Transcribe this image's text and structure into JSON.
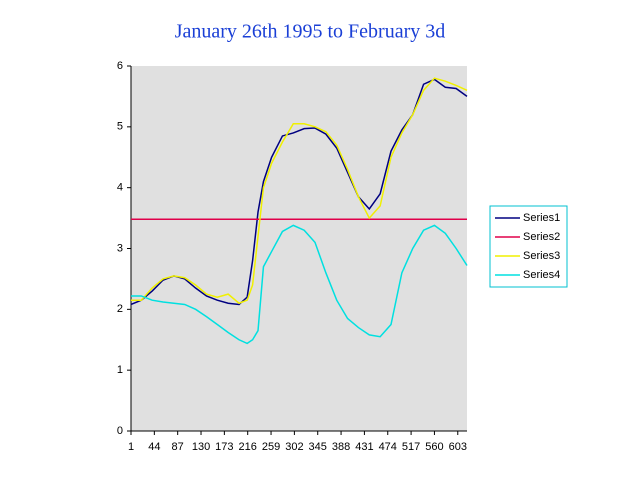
{
  "chart_data": {
    "type": "line",
    "title": "January 26th 1995 to February 3d",
    "x": [
      1,
      20,
      40,
      60,
      80,
      100,
      120,
      140,
      160,
      180,
      200,
      215,
      225,
      235,
      245,
      260,
      280,
      300,
      320,
      340,
      360,
      380,
      400,
      420,
      440,
      460,
      480,
      500,
      520,
      540,
      560,
      580,
      600,
      620
    ],
    "series": [
      {
        "name": "Series1",
        "color": "#000080",
        "values": [
          2.08,
          2.15,
          2.3,
          2.48,
          2.55,
          2.5,
          2.35,
          2.22,
          2.15,
          2.1,
          2.08,
          2.2,
          2.8,
          3.6,
          4.1,
          4.5,
          4.85,
          4.9,
          4.97,
          4.98,
          4.88,
          4.65,
          4.25,
          3.85,
          3.65,
          3.9,
          4.6,
          4.95,
          5.2,
          5.7,
          5.78,
          5.65,
          5.63,
          5.5
        ]
      },
      {
        "name": "Series2",
        "color": "#e0004a",
        "values": [
          3.48,
          3.48,
          3.48,
          3.48,
          3.48,
          3.48,
          3.48,
          3.48,
          3.48,
          3.48,
          3.48,
          3.48,
          3.48,
          3.48,
          3.48,
          3.48,
          3.48,
          3.48,
          3.48,
          3.48,
          3.48,
          3.48,
          3.48,
          3.48,
          3.48,
          3.48,
          3.48,
          3.48,
          3.48,
          3.48,
          3.48,
          3.48,
          3.48,
          3.48
        ]
      },
      {
        "name": "Series3",
        "color": "#f0f000",
        "values": [
          2.15,
          2.15,
          2.35,
          2.5,
          2.55,
          2.52,
          2.4,
          2.25,
          2.2,
          2.25,
          2.1,
          2.15,
          2.4,
          3.2,
          4.0,
          4.4,
          4.75,
          5.05,
          5.05,
          5.0,
          4.92,
          4.7,
          4.3,
          3.85,
          3.5,
          3.7,
          4.5,
          4.9,
          5.2,
          5.6,
          5.8,
          5.75,
          5.68,
          5.6
        ]
      },
      {
        "name": "Series4",
        "color": "#00e0e0",
        "values": [
          2.22,
          2.22,
          2.15,
          2.12,
          2.1,
          2.08,
          2.0,
          1.88,
          1.75,
          1.62,
          1.5,
          1.44,
          1.5,
          1.65,
          2.7,
          2.95,
          3.28,
          3.38,
          3.3,
          3.1,
          2.6,
          2.15,
          1.85,
          1.7,
          1.58,
          1.55,
          1.75,
          2.6,
          3.0,
          3.3,
          3.38,
          3.25,
          3.0,
          2.72
        ]
      }
    ],
    "xlim": [
      1,
      620
    ],
    "xticks": [
      1,
      44,
      87,
      130,
      173,
      216,
      259,
      302,
      345,
      388,
      431,
      474,
      517,
      560,
      603
    ],
    "ylim": [
      0,
      6
    ],
    "yticks": [
      0,
      1,
      2,
      3,
      4,
      5,
      6
    ],
    "legend": "right"
  }
}
